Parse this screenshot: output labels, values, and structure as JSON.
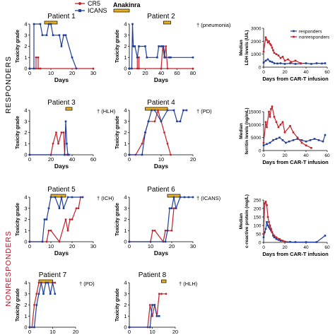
{
  "legend": {
    "items": [
      {
        "label": "CR5",
        "color": "#c0212a"
      },
      {
        "label": "ICANS",
        "color": "#1f3f99"
      },
      {
        "label": "Anakinra",
        "color": "#e9b01e"
      }
    ]
  },
  "groups": {
    "responders": "RESPONDERS",
    "nonresponders": "NONRESPONDERS"
  },
  "colors": {
    "crs": "#c0212a",
    "icans": "#1f3f99",
    "anakinra": "#e9b01e",
    "group_label": "#000000",
    "nonresponder_label": "#b0182b"
  },
  "chart_data": [
    {
      "type": "line",
      "title": "Patient 1",
      "xlabel": "Days",
      "ylabel": "Toxicity grade",
      "xlim": [
        0,
        30
      ],
      "ylim": [
        0,
        4
      ],
      "xticks": [
        0,
        10,
        20,
        30
      ],
      "yticks": [
        0,
        1,
        2,
        3,
        4
      ],
      "anakinra": [
        7,
        13
      ],
      "annotation": "",
      "series": [
        {
          "color": "#c0212a",
          "x": [
            0,
            3,
            3,
            4,
            4,
            5,
            5,
            30
          ],
          "y": [
            0,
            0,
            1,
            1,
            0,
            0,
            0,
            0
          ]
        },
        {
          "color": "#1f3f99",
          "x": [
            0,
            2,
            2,
            5,
            6,
            8,
            9,
            10,
            11,
            14,
            15,
            16,
            17,
            20,
            22
          ],
          "y": [
            0,
            0,
            4,
            4,
            3,
            3,
            4,
            4,
            3,
            3,
            2,
            3,
            3,
            1,
            0
          ]
        }
      ]
    },
    {
      "type": "line",
      "title": "Patient 2",
      "xlabel": "Days",
      "ylabel": "Toxicity grade",
      "xlim": [
        0,
        80
      ],
      "ylim": [
        0,
        4
      ],
      "xticks": [
        0,
        20,
        40,
        60,
        80
      ],
      "yticks": [
        0,
        1,
        2,
        3,
        4
      ],
      "anakinra": [
        43,
        52
      ],
      "annotation": "† (pneumonia)",
      "series": [
        {
          "color": "#c0212a",
          "x": [
            0,
            10,
            10,
            12,
            12,
            40,
            42,
            44,
            46,
            48,
            80
          ],
          "y": [
            0,
            0,
            1,
            1,
            0,
            0,
            2,
            1,
            2,
            0,
            0
          ]
        },
        {
          "color": "#1f3f99",
          "x": [
            0,
            3,
            4,
            5,
            7,
            10,
            12,
            20,
            22,
            35,
            37,
            40,
            43,
            45,
            50,
            52,
            80
          ],
          "y": [
            0,
            0,
            4,
            2,
            2,
            1,
            2,
            2,
            1,
            1,
            2,
            2,
            2,
            1,
            1,
            1,
            1
          ]
        }
      ]
    },
    {
      "type": "line",
      "title": "Patient 3",
      "xlabel": "Days",
      "ylabel": "Toxicity grade",
      "xlim": [
        0,
        60
      ],
      "ylim": [
        0,
        4
      ],
      "xticks": [
        0,
        20,
        40,
        60
      ],
      "yticks": [
        0,
        1,
        2,
        3,
        4
      ],
      "anakinra": [
        34,
        40
      ],
      "annotation": "† (HLH)",
      "series": [
        {
          "color": "#c0212a",
          "x": [
            0,
            20,
            22,
            25,
            27,
            30,
            32,
            33,
            35
          ],
          "y": [
            0,
            0,
            1,
            2,
            1,
            2,
            2,
            0,
            0
          ]
        },
        {
          "color": "#1f3f99",
          "x": [
            0,
            33,
            34,
            35,
            36,
            37
          ],
          "y": [
            0,
            0,
            3,
            1,
            0,
            0
          ]
        }
      ]
    },
    {
      "type": "line",
      "title": "Patient 4",
      "xlabel": "Days",
      "ylabel": "Toxicity grade",
      "xlim": [
        0,
        20
      ],
      "ylim": [
        0,
        4
      ],
      "xticks": [
        0,
        10,
        20
      ],
      "yticks": [
        0,
        1,
        2,
        3,
        4
      ],
      "anakinra": [
        5,
        12
      ],
      "annotation": "† (PD)",
      "series": [
        {
          "color": "#c0212a",
          "x": [
            0,
            2,
            4,
            5,
            6,
            8,
            9,
            10,
            11,
            12,
            13
          ],
          "y": [
            0,
            0,
            1,
            2,
            3,
            3,
            4,
            3,
            2,
            1,
            0
          ]
        },
        {
          "color": "#1f3f99",
          "x": [
            0,
            4,
            5,
            6,
            7,
            8,
            10,
            12,
            14,
            15,
            16,
            17,
            18
          ],
          "y": [
            0,
            0,
            2,
            3,
            4,
            4,
            3,
            4,
            4,
            3,
            3,
            4,
            4
          ]
        }
      ]
    },
    {
      "type": "line",
      "title": "Patient 5",
      "xlabel": "Days",
      "ylabel": "Toxicity grade",
      "xlim": [
        0,
        30
      ],
      "ylim": [
        0,
        4
      ],
      "xticks": [
        0,
        10,
        20,
        30
      ],
      "yticks": [
        0,
        1,
        2,
        3,
        4
      ],
      "anakinra": [
        10,
        17
      ],
      "annotation": "† (ICH)",
      "series": [
        {
          "color": "#c0212a",
          "x": [
            0,
            8,
            9,
            10,
            14,
            17,
            18,
            19,
            20,
            22,
            23,
            24
          ],
          "y": [
            0,
            0,
            1,
            1,
            0,
            2,
            1,
            2,
            2,
            3,
            3,
            4
          ]
        },
        {
          "color": "#1f3f99",
          "x": [
            0,
            6,
            7,
            8,
            9,
            10,
            12,
            14,
            15,
            16,
            18,
            20,
            25
          ],
          "y": [
            0,
            0,
            2,
            2,
            3,
            4,
            4,
            3,
            4,
            3,
            4,
            4,
            4
          ]
        }
      ]
    },
    {
      "type": "line",
      "title": "Patient 6",
      "xlabel": "Days",
      "ylabel": "Toxicity grade",
      "xlim": [
        0,
        30
      ],
      "ylim": [
        0,
        4
      ],
      "xticks": [
        0,
        10,
        20,
        30
      ],
      "yticks": [
        0,
        1,
        2,
        3,
        4
      ],
      "anakinra": [
        18,
        24
      ],
      "annotation": "† (ICANS)",
      "series": [
        {
          "color": "#c0212a",
          "x": [
            0,
            10,
            11,
            12,
            16,
            17,
            20,
            21,
            22
          ],
          "y": [
            0,
            0,
            1,
            1,
            0,
            1,
            1,
            3,
            3
          ]
        },
        {
          "color": "#1f3f99",
          "x": [
            0,
            17,
            18,
            19,
            20,
            21,
            22,
            24,
            26,
            28,
            30
          ],
          "y": [
            0,
            0,
            1,
            3,
            3,
            4,
            3,
            4,
            4,
            4,
            4
          ]
        }
      ]
    },
    {
      "type": "line",
      "title": "Patient 7",
      "xlabel": "Days",
      "ylabel": "Toxicity grade",
      "xlim": [
        0,
        20
      ],
      "ylim": [
        0,
        4
      ],
      "xticks": [
        0,
        10,
        20
      ],
      "yticks": [
        0,
        1,
        2,
        3,
        4
      ],
      "anakinra": [
        4,
        10
      ],
      "annotation": "† (PD)",
      "series": [
        {
          "color": "#c0212a",
          "x": [
            0,
            1,
            2,
            3,
            4,
            11
          ],
          "y": [
            0,
            0,
            2,
            3,
            4,
            4
          ]
        },
        {
          "color": "#1f3f99",
          "x": [
            0,
            2,
            3,
            4,
            5,
            6,
            7,
            8,
            9,
            10,
            11
          ],
          "y": [
            0,
            0,
            2,
            3,
            4,
            3,
            4,
            4,
            3,
            4,
            3
          ]
        }
      ]
    },
    {
      "type": "line",
      "title": "Patient 8",
      "xlabel": "Days",
      "ylabel": "Toxicity grade",
      "xlim": [
        0,
        20
      ],
      "ylim": [
        0,
        4
      ],
      "xticks": [
        0,
        10,
        20
      ],
      "yticks": [
        0,
        1,
        2,
        3,
        4
      ],
      "anakinra": [
        14,
        16
      ],
      "annotation": "† (HLH)",
      "series": [
        {
          "color": "#c0212a",
          "x": [
            0,
            8,
            9,
            10,
            11,
            12,
            13,
            14,
            16
          ],
          "y": [
            0,
            0,
            2,
            1,
            2,
            1,
            3,
            3,
            3
          ]
        },
        {
          "color": "#1f3f99",
          "x": [
            0,
            9,
            10,
            11,
            12,
            13
          ],
          "y": [
            0,
            0,
            2,
            2,
            1,
            1
          ]
        }
      ]
    },
    {
      "type": "line",
      "title": "",
      "xlabel": "Days from CAR-T infusion",
      "ylabel": "Median LDH levels (U/L)",
      "xlim": [
        0,
        60
      ],
      "ylim": [
        0,
        3000
      ],
      "xticks": [
        0,
        20,
        40,
        60
      ],
      "yticks": [
        0,
        1000,
        2000,
        3000
      ],
      "legend": "top-right",
      "series": [
        {
          "name": "responders",
          "color": "#1f3f99",
          "x": [
            0,
            2,
            4,
            6,
            8,
            10,
            13,
            16,
            20,
            25,
            30,
            35,
            40,
            45,
            50,
            55,
            58
          ],
          "y": [
            350,
            500,
            600,
            450,
            400,
            300,
            280,
            300,
            250,
            300,
            250,
            280,
            300,
            250,
            300,
            280,
            300
          ]
        },
        {
          "name": "nonresponders",
          "color": "#c0212a",
          "x": [
            0,
            2,
            3,
            4,
            5,
            6,
            7,
            8,
            9,
            10,
            12,
            14,
            16,
            18,
            20,
            23,
            26,
            30,
            35
          ],
          "y": [
            1200,
            2300,
            2100,
            1900,
            2000,
            1800,
            1700,
            1500,
            1300,
            1100,
            1000,
            900,
            700,
            800,
            500,
            600,
            400,
            500,
            300
          ]
        }
      ]
    },
    {
      "type": "line",
      "title": "",
      "xlabel": "Days from CAR-T infusion",
      "ylabel": "Median ferritin levels (ng/mL)",
      "xlim": [
        0,
        60
      ],
      "ylim": [
        0,
        15000
      ],
      "xticks": [
        0,
        20,
        40,
        60
      ],
      "yticks": [
        0,
        5000,
        10000,
        15000
      ],
      "series": [
        {
          "name": "responders",
          "color": "#1f3f99",
          "x": [
            0,
            3,
            6,
            9,
            12,
            15,
            18,
            21,
            24,
            28,
            32,
            36,
            40,
            44,
            48,
            52,
            56,
            58
          ],
          "y": [
            2000,
            2500,
            3000,
            4000,
            4500,
            5000,
            4000,
            3000,
            3500,
            4000,
            4500,
            4000,
            3500,
            4000,
            4500,
            4000,
            3500,
            6000
          ]
        },
        {
          "name": "nonresponders",
          "color": "#c0212a",
          "x": [
            0,
            2,
            3,
            5,
            6,
            7,
            8,
            10,
            12,
            14,
            16,
            18,
            20,
            25,
            28,
            32,
            36,
            40,
            45
          ],
          "y": [
            3000,
            11000,
            9000,
            15000,
            13000,
            16000,
            17000,
            13000,
            11000,
            9000,
            10000,
            11000,
            7000,
            9500,
            7000,
            5000,
            3000,
            2000,
            1000
          ]
        }
      ]
    },
    {
      "type": "line",
      "title": "",
      "xlabel": "Days from CAR-T infusion",
      "ylabel": "Median c-reactive protein (mg/L)",
      "xlim": [
        0,
        60
      ],
      "ylim": [
        0,
        250
      ],
      "xticks": [
        0,
        20,
        40,
        60
      ],
      "yticks": [
        0,
        50,
        100,
        150,
        200,
        250
      ],
      "series": [
        {
          "name": "responders",
          "color": "#1f3f99",
          "x": [
            0,
            1,
            2,
            3,
            4,
            5,
            6,
            7,
            8,
            9,
            10,
            12,
            14,
            16,
            20,
            25,
            30,
            40,
            50,
            58
          ],
          "y": [
            30,
            60,
            80,
            120,
            100,
            90,
            80,
            70,
            60,
            40,
            30,
            20,
            15,
            10,
            5,
            3,
            2,
            2,
            2,
            40
          ]
        },
        {
          "name": "nonresponders",
          "color": "#c0212a",
          "x": [
            0,
            1,
            2,
            3,
            4,
            5,
            6,
            7,
            8,
            10,
            12,
            15,
            18,
            20
          ],
          "y": [
            50,
            230,
            240,
            220,
            150,
            120,
            100,
            80,
            60,
            40,
            30,
            20,
            10,
            5
          ]
        }
      ]
    }
  ]
}
